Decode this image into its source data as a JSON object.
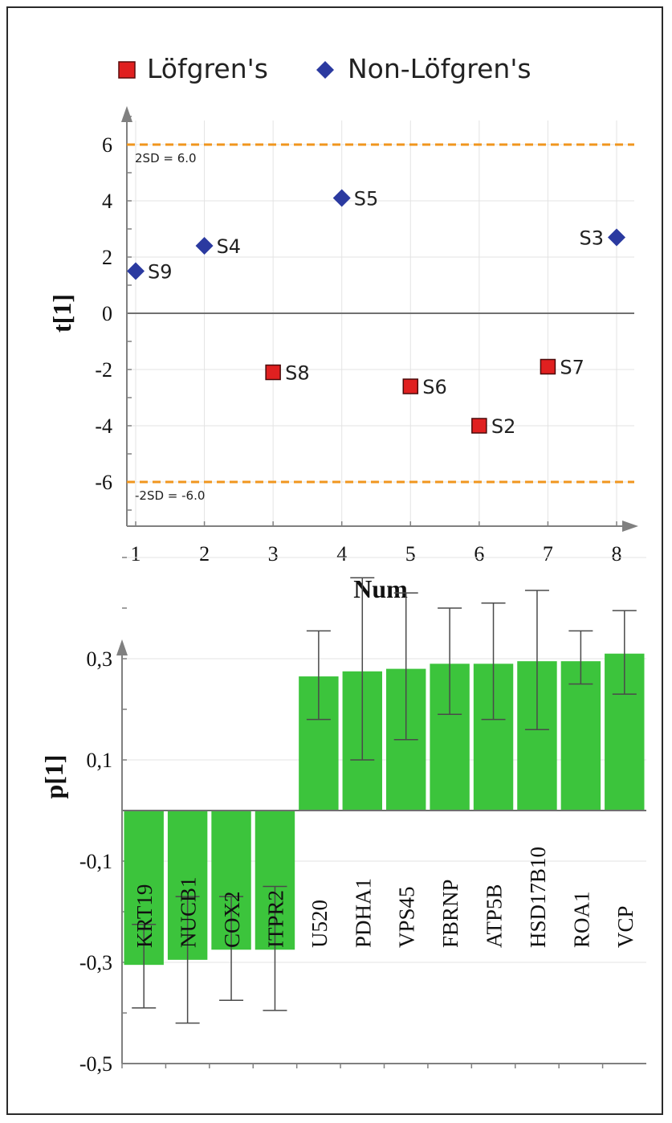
{
  "chart_data": [
    {
      "type": "scatter",
      "xlabel": "Num",
      "ylabel": "t[1]",
      "xlim": [
        0.9,
        8.2
      ],
      "ylim": [
        -7.2,
        7.2
      ],
      "x_ticks": [
        1,
        2,
        3,
        4,
        5,
        6,
        7,
        8
      ],
      "y_ticks": [
        -6,
        -4,
        -2,
        0,
        2,
        4,
        6
      ],
      "grid": true,
      "legend_position": "top",
      "series": [
        {
          "name": "Löfgren's",
          "marker": "square",
          "color": "#e02020",
          "points": [
            {
              "label": "S8",
              "x": 3,
              "y": -2.1
            },
            {
              "label": "S6",
              "x": 5,
              "y": -2.6
            },
            {
              "label": "S2",
              "x": 6,
              "y": -4.0
            },
            {
              "label": "S7",
              "x": 7,
              "y": -1.9
            }
          ]
        },
        {
          "name": "Non-Löfgren's",
          "marker": "diamond",
          "color": "#2b3aa0",
          "points": [
            {
              "label": "S9",
              "x": 1,
              "y": 1.5
            },
            {
              "label": "S4",
              "x": 2,
              "y": 2.4
            },
            {
              "label": "S5",
              "x": 4,
              "y": 4.1
            },
            {
              "label": "S3",
              "x": 8,
              "y": 2.7
            }
          ]
        }
      ],
      "reference_lines": [
        {
          "y": 6.0,
          "label": "2SD = 6.0",
          "color": "#f0961e"
        },
        {
          "y": -6.0,
          "label": "-2SD = -6.0",
          "color": "#f0961e"
        }
      ]
    },
    {
      "type": "bar",
      "ylabel": "p[1]",
      "ylim": [
        -0.5,
        0.5
      ],
      "y_ticks": [
        -0.5,
        -0.3,
        -0.1,
        0.1,
        0.3
      ],
      "y_tick_labels": [
        "-0,5",
        "-0,3",
        "-0,1",
        "0,1",
        "0,3"
      ],
      "grid": true,
      "color": "#3cc43c",
      "categories": [
        "KRT19",
        "NUCB1",
        "COX2",
        "ITPR2",
        "U520",
        "PDHA1",
        "VPS45",
        "FBRNP",
        "ATP5B",
        "HSD17B10",
        "ROA1",
        "VCP"
      ],
      "values": [
        -0.305,
        -0.295,
        -0.275,
        -0.275,
        0.265,
        0.275,
        0.28,
        0.29,
        0.29,
        0.295,
        0.295,
        0.31
      ],
      "error_low": [
        -0.39,
        -0.42,
        -0.375,
        -0.395,
        0.18,
        0.1,
        0.14,
        0.19,
        0.18,
        0.16,
        0.25,
        0.23
      ],
      "error_high": [
        -0.225,
        -0.17,
        -0.17,
        -0.15,
        0.355,
        0.46,
        0.43,
        0.4,
        0.41,
        0.435,
        0.355,
        0.395
      ]
    }
  ]
}
